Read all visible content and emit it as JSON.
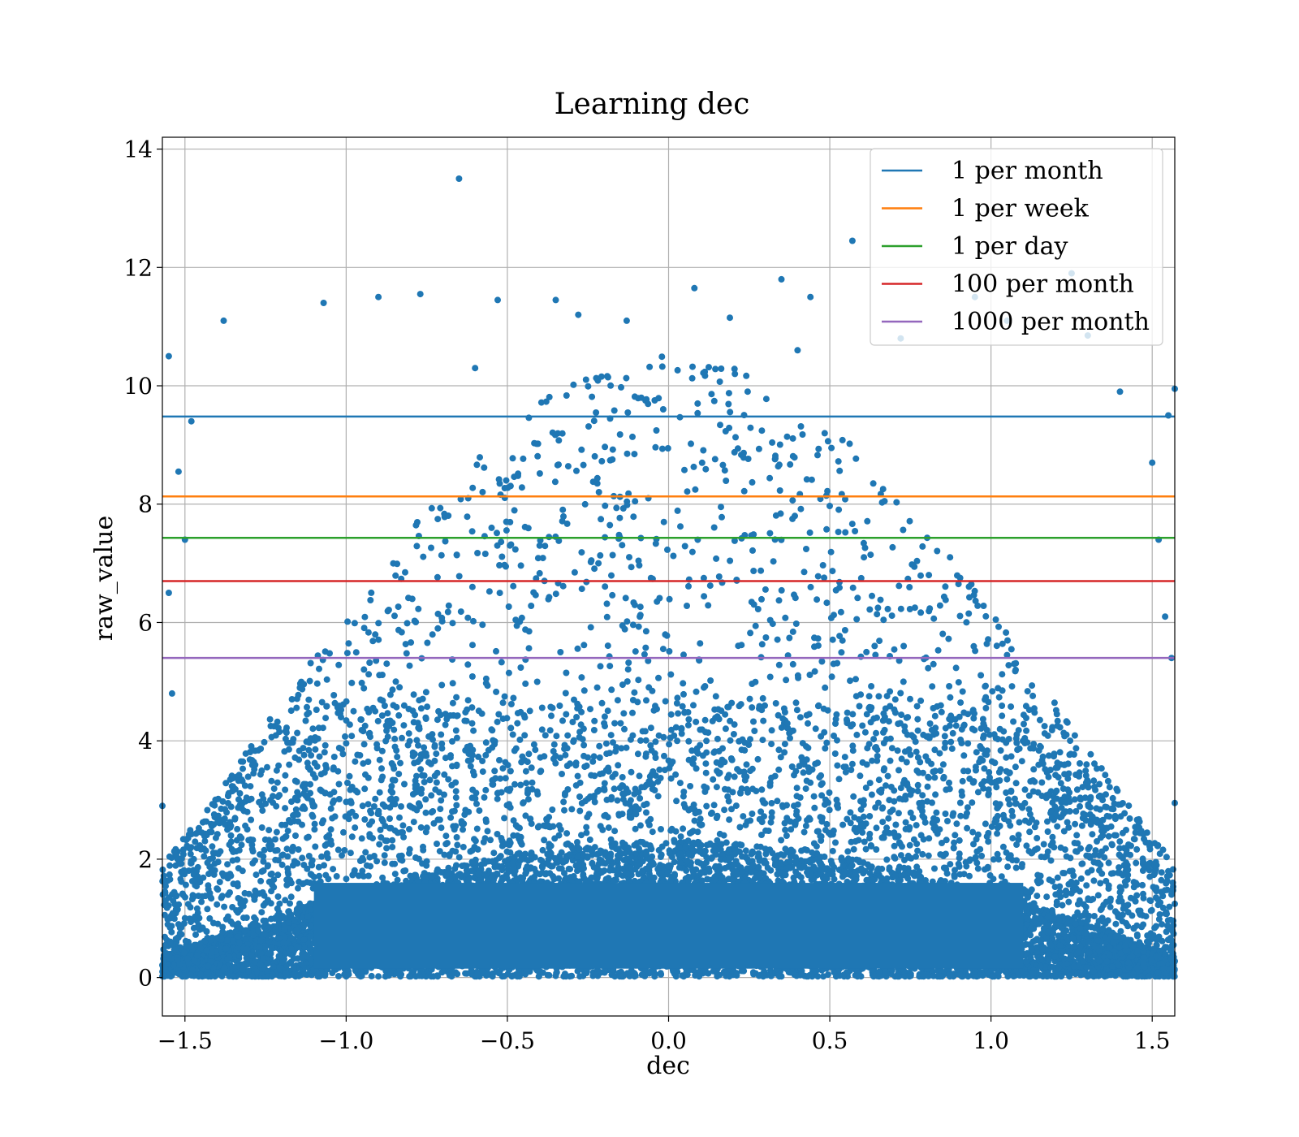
{
  "chart_data": {
    "type": "scatter",
    "title": "Learning dec",
    "xlabel": "dec",
    "ylabel": "raw_value",
    "xlim": [
      -1.57,
      1.57
    ],
    "ylim": [
      -0.65,
      14.2
    ],
    "xticks": [
      -1.5,
      -1.0,
      -0.5,
      0.0,
      0.5,
      1.0,
      1.5
    ],
    "xtick_labels": [
      "−1.5",
      "−1.0",
      "−0.5",
      "0.0",
      "0.5",
      "1.0",
      "1.5"
    ],
    "yticks": [
      0,
      2,
      4,
      6,
      8,
      10,
      12,
      14
    ],
    "ytick_labels": [
      "0",
      "2",
      "4",
      "6",
      "8",
      "10",
      "12",
      "14"
    ],
    "grid": true,
    "legend_position": "top-right",
    "scatter_color": "#1f77b4",
    "scatter_points": [
      [
        -0.65,
        13.5
      ],
      [
        0.57,
        12.45
      ],
      [
        0.35,
        11.8
      ],
      [
        0.08,
        11.65
      ],
      [
        -0.77,
        11.55
      ],
      [
        -0.53,
        11.45
      ],
      [
        -0.9,
        11.5
      ],
      [
        -1.07,
        11.4
      ],
      [
        -0.35,
        11.45
      ],
      [
        0.44,
        11.5
      ],
      [
        -1.38,
        11.1
      ],
      [
        -1.55,
        10.5
      ],
      [
        0.95,
        11.5
      ],
      [
        1.25,
        11.9
      ],
      [
        -0.28,
        11.2
      ],
      [
        -0.13,
        11.1
      ],
      [
        0.19,
        11.15
      ],
      [
        -0.6,
        10.3
      ],
      [
        0.72,
        10.8
      ],
      [
        1.05,
        11.1
      ],
      [
        1.3,
        10.85
      ],
      [
        1.4,
        9.9
      ],
      [
        1.57,
        9.95
      ],
      [
        -1.48,
        9.4
      ],
      [
        1.55,
        9.5
      ],
      [
        -1.52,
        8.55
      ],
      [
        1.5,
        8.7
      ],
      [
        -1.5,
        7.4
      ],
      [
        1.52,
        7.4
      ],
      [
        -1.55,
        6.5
      ],
      [
        1.54,
        6.1
      ],
      [
        -1.54,
        4.8
      ],
      [
        1.56,
        5.4
      ],
      [
        -1.57,
        2.9
      ],
      [
        1.57,
        2.95
      ],
      [
        -1.55,
        1.35
      ],
      [
        1.56,
        1.4
      ],
      [
        -1.52,
        0.9
      ],
      [
        1.53,
        0.9
      ],
      [
        0.4,
        10.6
      ]
    ],
    "hlines": [
      {
        "name": "1 per month",
        "y": 9.48,
        "color": "#1f77b4"
      },
      {
        "name": "1 per week",
        "y": 8.13,
        "color": "#ff7f0e"
      },
      {
        "name": "1 per day",
        "y": 7.43,
        "color": "#2ca02c"
      },
      {
        "name": "100 per month",
        "y": 6.7,
        "color": "#d62728"
      },
      {
        "name": "1000 per month",
        "y": 5.4,
        "color": "#9467bd"
      }
    ]
  }
}
